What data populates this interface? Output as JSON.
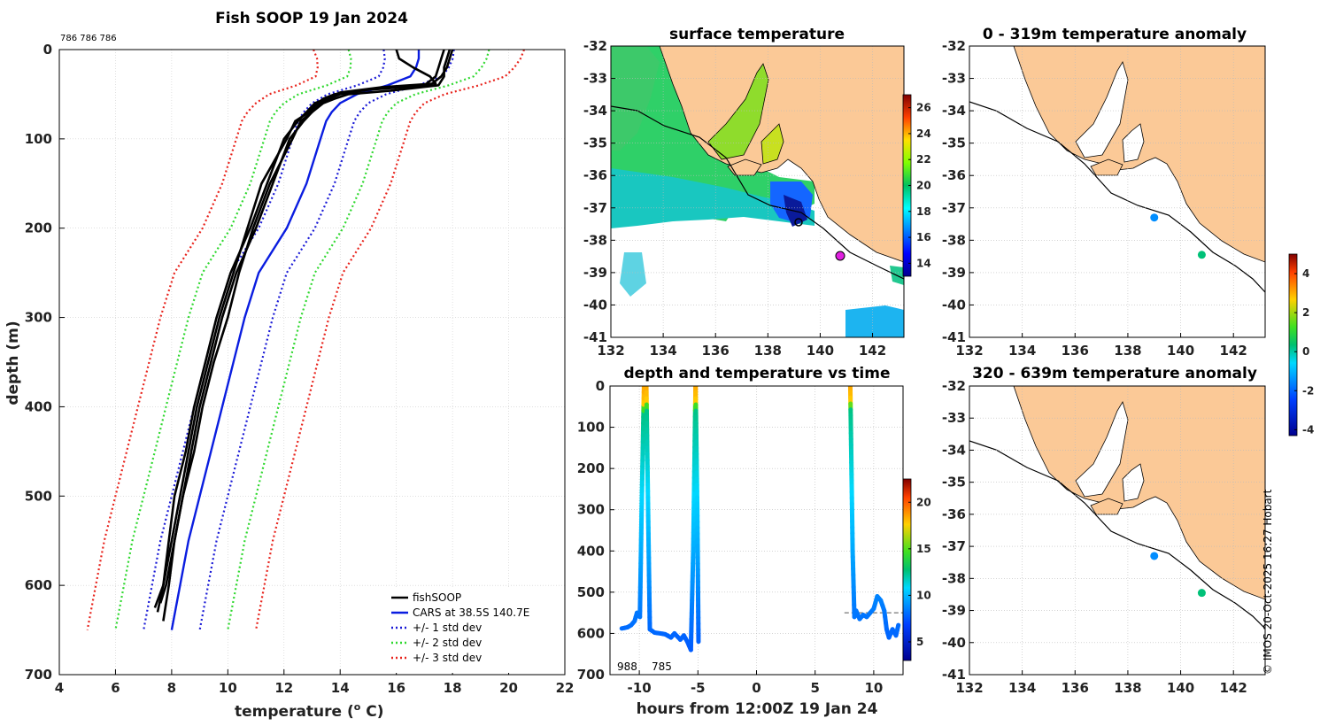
{
  "figure": {
    "credit": "© IMOS 20-Oct-2025 16:27 Hobart",
    "colors": {
      "land": "#fbc997",
      "profile": "#000000",
      "cars": "#0a1de0",
      "std1": "#1a1ad6",
      "std2": "#2fd82f",
      "std3": "#e8231c"
    }
  },
  "chart_data": [
    {
      "id": "profile",
      "type": "line",
      "title": "Fish SOOP 19 Jan 2024",
      "subtitle": "786 786 786",
      "xlabel": "temperature (",
      "xlabel_sup": "o",
      "xlabel_end": " C)",
      "ylabel": "depth (m)",
      "xlim": [
        4,
        22
      ],
      "ylim": [
        0,
        700
      ],
      "xticks": [
        4,
        6,
        8,
        10,
        12,
        14,
        16,
        18,
        20,
        22
      ],
      "yticks": [
        0,
        100,
        200,
        300,
        400,
        500,
        600,
        700
      ],
      "legend_position": "bottom-right",
      "legend": [
        "fishSOOP",
        "CARS at 38.5S 140.7E",
        "+/- 1 std dev",
        "+/- 2 std dev",
        "+/- 3 std dev"
      ],
      "depth": [
        0,
        10,
        20,
        30,
        40,
        50,
        60,
        70,
        80,
        100,
        150,
        200,
        250,
        300,
        350,
        400,
        450,
        500,
        550,
        600,
        650
      ],
      "cars_temp": [
        16.8,
        16.8,
        16.7,
        16.5,
        15.7,
        14.6,
        14.0,
        13.7,
        13.5,
        13.3,
        12.8,
        12.1,
        11.1,
        10.6,
        10.2,
        9.8,
        9.4,
        9.0,
        8.6,
        8.3,
        8.0
      ],
      "std_offsets": [
        1.0,
        2.0,
        3.0
      ],
      "profiles": [
        {
          "depth": [
            0,
            10,
            20,
            30,
            40,
            45,
            50,
            55,
            60,
            70,
            80,
            100,
            150,
            200,
            250,
            300,
            350,
            400,
            450,
            500,
            550,
            600,
            620
          ],
          "temp": [
            18.0,
            17.9,
            17.8,
            17.6,
            17.2,
            15.0,
            14.0,
            13.6,
            13.3,
            13.0,
            12.7,
            12.2,
            11.6,
            11.0,
            10.3,
            9.8,
            9.4,
            9.0,
            8.7,
            8.4,
            8.1,
            7.8,
            7.6
          ]
        },
        {
          "depth": [
            0,
            10,
            20,
            30,
            38,
            42,
            48,
            55,
            60,
            70,
            80,
            100,
            150,
            200,
            250,
            300,
            350,
            400,
            450,
            500,
            550,
            600,
            630
          ],
          "temp": [
            16.0,
            16.1,
            16.6,
            17.2,
            17.4,
            15.5,
            14.0,
            13.5,
            13.1,
            12.8,
            12.5,
            12.0,
            11.4,
            10.8,
            10.1,
            9.6,
            9.2,
            8.8,
            8.5,
            8.1,
            7.9,
            7.7,
            7.5
          ]
        },
        {
          "depth": [
            0,
            10,
            20,
            30,
            40,
            46,
            50,
            55,
            60,
            70,
            80,
            100,
            150,
            200,
            250,
            300,
            350,
            400,
            450,
            500,
            550,
            600,
            640
          ],
          "temp": [
            17.9,
            17.8,
            17.7,
            17.7,
            17.5,
            15.8,
            14.3,
            13.8,
            13.4,
            13.0,
            12.6,
            12.3,
            11.5,
            10.9,
            10.4,
            10.0,
            9.5,
            9.1,
            8.8,
            8.4,
            8.1,
            7.9,
            7.7
          ]
        },
        {
          "depth": [
            0,
            10,
            20,
            30,
            40,
            44,
            50,
            55,
            60,
            70,
            80,
            100,
            150,
            200,
            250,
            300,
            350,
            400,
            450,
            500,
            550,
            600,
            625
          ],
          "temp": [
            17.7,
            17.6,
            17.5,
            17.4,
            17.0,
            15.2,
            13.8,
            13.4,
            13.2,
            12.9,
            12.4,
            12.1,
            11.2,
            10.7,
            10.2,
            9.7,
            9.3,
            8.9,
            8.6,
            8.3,
            8.0,
            7.7,
            7.4
          ]
        }
      ]
    },
    {
      "id": "sst_map",
      "type": "heatmap",
      "title": "surface temperature",
      "xlim": [
        132,
        143.2
      ],
      "ylim": [
        -41,
        -32
      ],
      "xticks": [
        132,
        134,
        136,
        138,
        140,
        142
      ],
      "yticks": [
        -32,
        -33,
        -34,
        -35,
        -36,
        -37,
        -38,
        -39,
        -40,
        -41
      ],
      "colorbar_range": [
        13,
        27
      ],
      "colorbar_ticks": [
        14,
        16,
        18,
        20,
        22,
        24,
        26
      ]
    },
    {
      "id": "depth_time",
      "type": "scatter",
      "title": "depth and temperature vs time",
      "xlabel": "hours from 12:00Z 19 Jan 24",
      "xlim": [
        -12.5,
        12.5
      ],
      "ylim": [
        0,
        700
      ],
      "xticks": [
        -10,
        -5,
        0,
        5,
        10
      ],
      "yticks": [
        0,
        100,
        200,
        300,
        400,
        500,
        600,
        700
      ],
      "colorbar_range": [
        3,
        22.5
      ],
      "colorbar_ticks": [
        5,
        10,
        15,
        20
      ],
      "annotations": [
        "988",
        "785"
      ],
      "reference_depth": 550,
      "track": [
        [
          -11.5,
          588
        ],
        [
          -11,
          585
        ],
        [
          -10.7,
          580
        ],
        [
          -10.4,
          570
        ],
        [
          -10.2,
          550
        ],
        [
          -10.1,
          555
        ],
        [
          -9.95,
          560
        ],
        [
          -9.8,
          300
        ],
        [
          -9.6,
          0
        ],
        [
          -9.4,
          0
        ],
        [
          -9.25,
          300
        ],
        [
          -9.1,
          590
        ],
        [
          -8.7,
          598
        ],
        [
          -8.2,
          600
        ],
        [
          -7.8,
          602
        ],
        [
          -7.3,
          610
        ],
        [
          -7.0,
          600
        ],
        [
          -6.5,
          615
        ],
        [
          -6.2,
          605
        ],
        [
          -5.9,
          620
        ],
        [
          -5.6,
          640
        ],
        [
          -5.4,
          400
        ],
        [
          -5.2,
          0
        ],
        [
          -5.05,
          300
        ],
        [
          -4.95,
          620
        ]
      ],
      "track2": [
        [
          8.0,
          0
        ],
        [
          8.1,
          200
        ],
        [
          8.2,
          400
        ],
        [
          8.35,
          560
        ],
        [
          8.5,
          545
        ],
        [
          8.8,
          565
        ],
        [
          9.1,
          555
        ],
        [
          9.4,
          560
        ],
        [
          9.7,
          550
        ],
        [
          10.0,
          540
        ],
        [
          10.3,
          510
        ],
        [
          10.6,
          520
        ],
        [
          10.9,
          545
        ],
        [
          11.1,
          590
        ],
        [
          11.3,
          610
        ],
        [
          11.6,
          590
        ],
        [
          11.9,
          605
        ],
        [
          12.1,
          580
        ]
      ]
    },
    {
      "id": "anom_shallow",
      "type": "scatter",
      "title": "0 - 319m temperature anomaly",
      "xlim": [
        132,
        143.2
      ],
      "ylim": [
        -41,
        -32
      ],
      "xticks": [
        132,
        134,
        136,
        138,
        140,
        142
      ],
      "yticks": [
        -32,
        -33,
        -34,
        -35,
        -36,
        -37,
        -38,
        -39,
        -40,
        -41
      ],
      "points": [
        [
          139.0,
          -37.3,
          -1.5
        ],
        [
          140.8,
          -38.45,
          0.3
        ]
      ]
    },
    {
      "id": "anom_deep",
      "type": "scatter",
      "title": "320 - 639m temperature anomaly",
      "xlim": [
        132,
        143.2
      ],
      "ylim": [
        -41,
        -32
      ],
      "xticks": [
        132,
        134,
        136,
        138,
        140,
        142
      ],
      "yticks": [
        -32,
        -33,
        -34,
        -35,
        -36,
        -37,
        -38,
        -39,
        -40,
        -41
      ],
      "points": [
        [
          139.0,
          -37.3,
          -1.5
        ],
        [
          140.8,
          -38.45,
          0.3
        ]
      ]
    },
    {
      "id": "anom_colorbar",
      "type": "heatmap",
      "colorbar_range": [
        -4.3,
        5
      ],
      "colorbar_ticks": [
        4,
        2,
        0,
        -2,
        -4
      ]
    }
  ]
}
